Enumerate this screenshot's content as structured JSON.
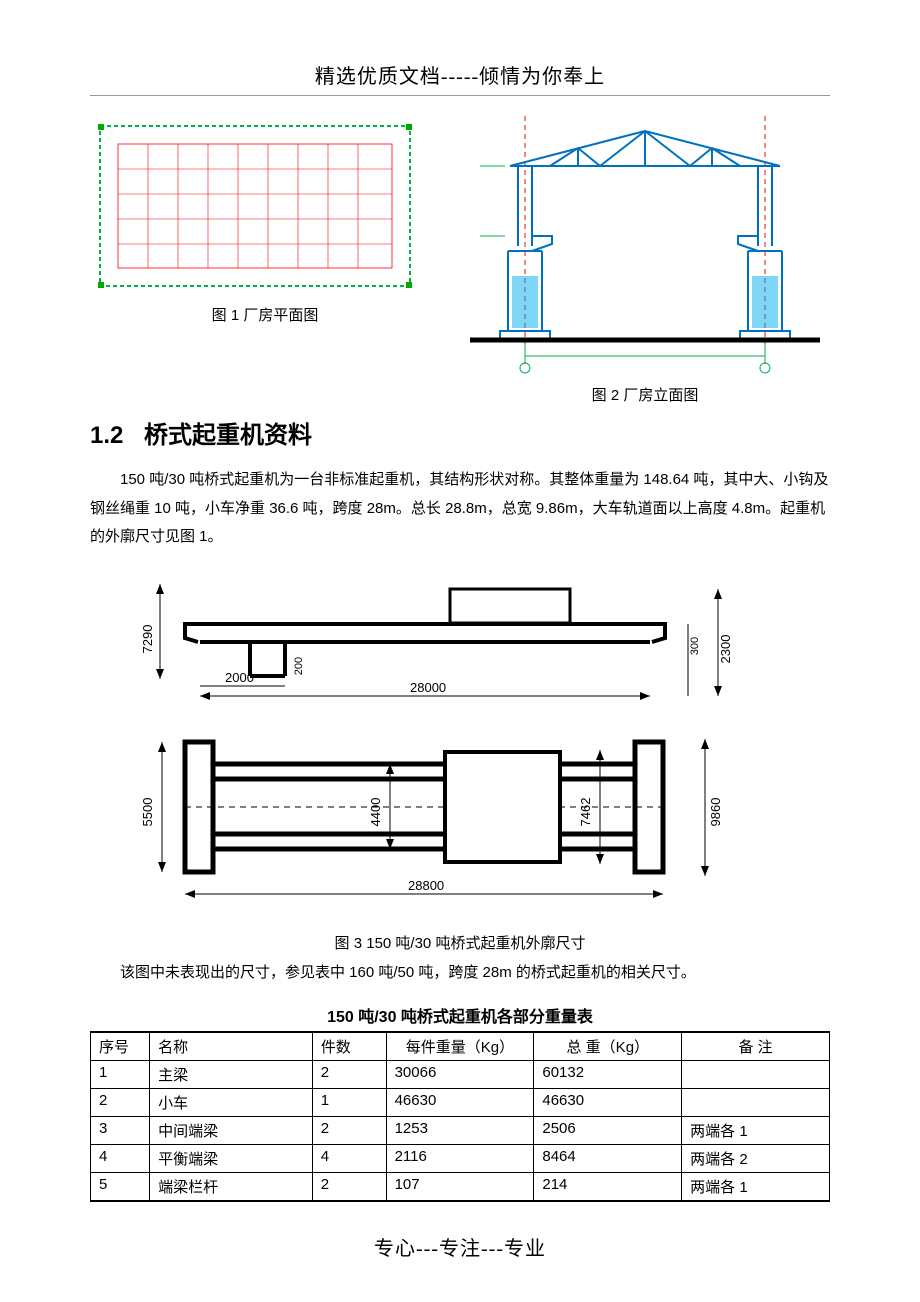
{
  "header": "精选优质文档-----倾情为你奉上",
  "footer": "专心---专注---专业",
  "fig1": {
    "caption": "图 1 厂房平面图",
    "outer_stroke": "#00b050",
    "outer_dash": "4 3",
    "grid_stroke": "#ff0000",
    "grid_width": 0.6,
    "corner_fill": "#00aa00",
    "n_cols": 9,
    "n_rows": 5
  },
  "fig2": {
    "caption": "图 2 厂房立面图",
    "frame_stroke": "#0070c0",
    "truss_stroke": "#0070c0",
    "axis_stroke": "#ff0000",
    "axis_dash": "5 4",
    "column_fill": "#00b0f0",
    "ground_stroke": "#000000",
    "dim_stroke": "#00b050"
  },
  "section": {
    "num": "1.2",
    "title": "桥式起重机资料"
  },
  "para1": "150 吨/30 吨桥式起重机为一台非标准起重机，其结构形状对称。其整体重量为 148.64 吨，其中大、小钩及钢丝绳重 10 吨，小车净重 36.6 吨，跨度 28m。总长 28.8m，总宽 9.86m，大车轨道面以上高度 4.8m。起重机的外廓尺寸见图 1。",
  "fig3": {
    "caption": "图 3   150 吨/30 吨桥式起重机外廓尺寸",
    "stroke": "#000000",
    "dims": {
      "d7290": "7290",
      "d2000": "2000",
      "d200": "200",
      "d28000": "28000",
      "d300": "300",
      "d2300": "2300",
      "d5500": "5500",
      "d4400": "4400",
      "d7462": "7462",
      "d9860": "9860",
      "d28800": "28800"
    }
  },
  "para2": "该图中未表现出的尺寸，参见表中 160 吨/50 吨，跨度 28m 的桥式起重机的相关尺寸。",
  "table": {
    "title": "150 吨/30 吨桥式起重机各部分重量表",
    "columns": [
      "序号",
      "名称",
      "件数",
      "每件重量（Kg）",
      "总   重（Kg）",
      "备  注"
    ],
    "col_widths": [
      "8%",
      "22%",
      "10%",
      "20%",
      "20%",
      "20%"
    ],
    "rows": [
      [
        "1",
        "主梁",
        "2",
        "30066",
        "60132",
        ""
      ],
      [
        "2",
        "小车",
        "1",
        "46630",
        "46630",
        ""
      ],
      [
        "3",
        "中间端梁",
        "2",
        "1253",
        "2506",
        "两端各 1"
      ],
      [
        "4",
        "平衡端梁",
        "4",
        "2116",
        "8464",
        "两端各 2"
      ],
      [
        "5",
        "端梁栏杆",
        "2",
        "107",
        "214",
        "两端各 1"
      ]
    ]
  }
}
